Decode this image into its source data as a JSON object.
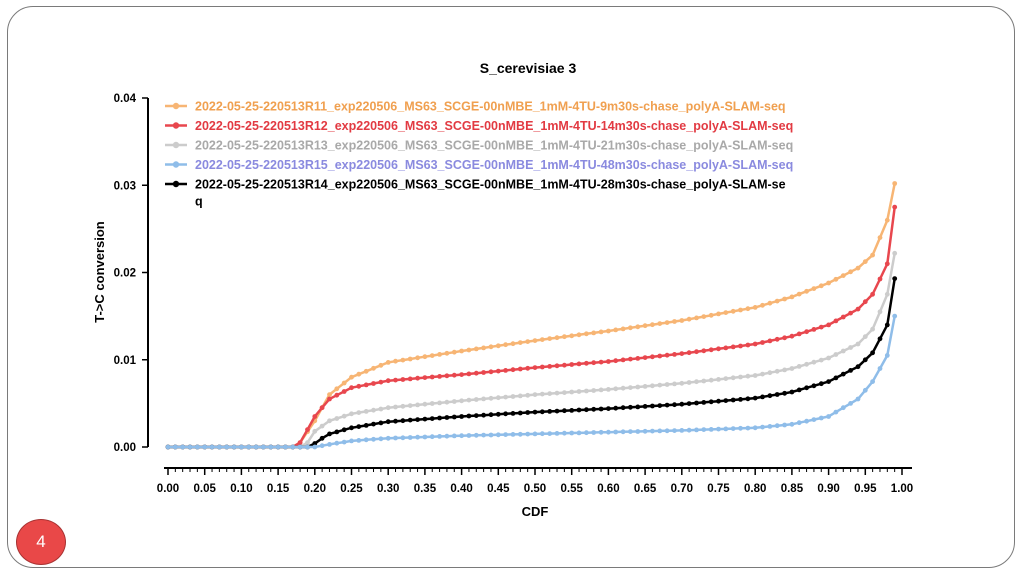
{
  "slide": {
    "page_number": "4"
  },
  "chart_data": {
    "type": "line",
    "title": "S_cerevisiae 3",
    "xlabel": "CDF",
    "ylabel": "T->C conversion",
    "xlim": [
      0,
      1
    ],
    "ylim": [
      0,
      0.04
    ],
    "x_ticks": [
      "0.00",
      "0.05",
      "0.10",
      "0.15",
      "0.20",
      "0.25",
      "0.30",
      "0.35",
      "0.40",
      "0.45",
      "0.50",
      "0.55",
      "0.60",
      "0.65",
      "0.70",
      "0.75",
      "0.80",
      "0.85",
      "0.90",
      "0.95",
      "1.00"
    ],
    "y_ticks": [
      "0.00",
      "0.01",
      "0.02",
      "0.03",
      "0.04"
    ],
    "grid": false,
    "legend_position": "top-left",
    "x_step": 0.01,
    "series": [
      {
        "name": "2022-05-25-220513R11_exp220506_MS63_SCGE-00nMBE_1mM-4TU-9m30s-chase_polyA-SLAM-seq",
        "legend_lines": [
          "2022-05-25-220513R11_exp220506_MS63_SCGE-00nMBE_1mM-4TU-9m30s-chase_polyA-SLAM-seq"
        ],
        "color": "#f7b574",
        "text_color": "#f0a050",
        "anchors": [
          [
            0,
            0
          ],
          [
            0.17,
            0
          ],
          [
            0.18,
            0.0005
          ],
          [
            0.2,
            0.003
          ],
          [
            0.22,
            0.006
          ],
          [
            0.25,
            0.008
          ],
          [
            0.3,
            0.0097
          ],
          [
            0.4,
            0.011
          ],
          [
            0.5,
            0.0122
          ],
          [
            0.6,
            0.0133
          ],
          [
            0.7,
            0.0145
          ],
          [
            0.8,
            0.016
          ],
          [
            0.85,
            0.0172
          ],
          [
            0.9,
            0.0188
          ],
          [
            0.94,
            0.0205
          ],
          [
            0.96,
            0.022
          ],
          [
            0.98,
            0.026
          ],
          [
            0.99,
            0.0302
          ]
        ]
      },
      {
        "name": "2022-05-25-220513R12_exp220506_MS63_SCGE-00nMBE_1mM-4TU-14m30s-chase_polyA-SLAM-seq",
        "legend_lines": [
          "2022-05-25-220513R12_exp220506_MS63_SCGE-00nMBE_1mM-4TU-14m30s-chase_polyA-SLAM-seq"
        ],
        "color": "#e8474e",
        "text_color": "#e23a42",
        "anchors": [
          [
            0,
            0
          ],
          [
            0.17,
            0
          ],
          [
            0.18,
            0.0005
          ],
          [
            0.2,
            0.0035
          ],
          [
            0.22,
            0.0055
          ],
          [
            0.25,
            0.0068
          ],
          [
            0.3,
            0.0076
          ],
          [
            0.4,
            0.0083
          ],
          [
            0.5,
            0.0091
          ],
          [
            0.6,
            0.0098
          ],
          [
            0.7,
            0.0107
          ],
          [
            0.8,
            0.0118
          ],
          [
            0.85,
            0.0127
          ],
          [
            0.9,
            0.014
          ],
          [
            0.94,
            0.0158
          ],
          [
            0.96,
            0.0175
          ],
          [
            0.98,
            0.021
          ],
          [
            0.99,
            0.0275
          ]
        ]
      },
      {
        "name": "2022-05-25-220513R13_exp220506_MS63_SCGE-00nMBE_1mM-4TU-21m30s-chase_polyA-SLAM-seq",
        "legend_lines": [
          "2022-05-25-220513R13_exp220506_MS63_SCGE-00nMBE_1mM-4TU-21m30s-chase_polyA-SLAM-seq"
        ],
        "color": "#cccccc",
        "text_color": "#a9a9a9",
        "anchors": [
          [
            0,
            0
          ],
          [
            0.18,
            0
          ],
          [
            0.19,
            0.0005
          ],
          [
            0.2,
            0.0018
          ],
          [
            0.22,
            0.003
          ],
          [
            0.25,
            0.0038
          ],
          [
            0.3,
            0.0045
          ],
          [
            0.4,
            0.0053
          ],
          [
            0.5,
            0.006
          ],
          [
            0.6,
            0.0066
          ],
          [
            0.7,
            0.0073
          ],
          [
            0.8,
            0.0082
          ],
          [
            0.85,
            0.009
          ],
          [
            0.9,
            0.0102
          ],
          [
            0.94,
            0.0118
          ],
          [
            0.96,
            0.0135
          ],
          [
            0.98,
            0.0175
          ],
          [
            0.99,
            0.0222
          ]
        ]
      },
      {
        "name": "2022-05-25-220513R15_exp220506_MS63_SCGE-00nMBE_1mM-4TU-48m30s-chase_polyA-SLAM-seq",
        "legend_lines": [
          "2022-05-25-220513R15_exp220506_MS63_SCGE-00nMBE_1mM-4TU-48m30s-chase_polyA-SLAM-seq"
        ],
        "color": "#8fbde9",
        "text_color": "#8a8adf",
        "anchors": [
          [
            0,
            0
          ],
          [
            0.2,
            0
          ],
          [
            0.22,
            0.0003
          ],
          [
            0.25,
            0.0007
          ],
          [
            0.3,
            0.001
          ],
          [
            0.4,
            0.0013
          ],
          [
            0.5,
            0.0015
          ],
          [
            0.6,
            0.0017
          ],
          [
            0.7,
            0.0019
          ],
          [
            0.8,
            0.0022
          ],
          [
            0.85,
            0.0026
          ],
          [
            0.9,
            0.0035
          ],
          [
            0.94,
            0.0055
          ],
          [
            0.96,
            0.0075
          ],
          [
            0.98,
            0.0105
          ],
          [
            0.99,
            0.015
          ]
        ]
      },
      {
        "name": "2022-05-25-220513R14_exp220506_MS63_SCGE-00nMBE_1mM-4TU-28m30s-chase_polyA-SLAM-seq",
        "legend_lines": [
          "2022-05-25-220513R14_exp220506_MS63_SCGE-00nMBE_1mM-4TU-28m30s-chase_polyA-SLAM-se",
          "q"
        ],
        "color": "#000000",
        "text_color": "#000000",
        "anchors": [
          [
            0,
            0
          ],
          [
            0.19,
            0
          ],
          [
            0.2,
            0.0004
          ],
          [
            0.21,
            0.001
          ],
          [
            0.22,
            0.0015
          ],
          [
            0.25,
            0.0022
          ],
          [
            0.3,
            0.0029
          ],
          [
            0.4,
            0.0035
          ],
          [
            0.5,
            0.004
          ],
          [
            0.6,
            0.0044
          ],
          [
            0.7,
            0.0049
          ],
          [
            0.8,
            0.0056
          ],
          [
            0.85,
            0.0063
          ],
          [
            0.9,
            0.0075
          ],
          [
            0.94,
            0.0092
          ],
          [
            0.96,
            0.0108
          ],
          [
            0.98,
            0.014
          ],
          [
            0.99,
            0.0193
          ]
        ]
      }
    ]
  }
}
